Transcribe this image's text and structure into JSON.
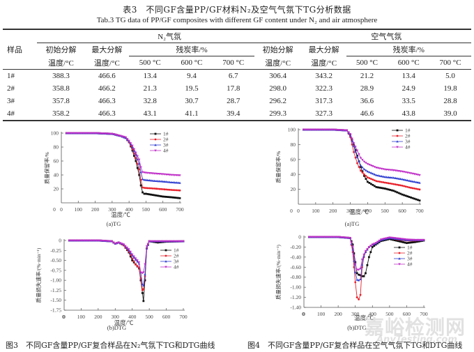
{
  "table": {
    "title_cn": "表3　不同GF含量PP/GF材料N₂及空气气氛下TG分析数据",
    "title_en": "Tab.3 TG data of PP/GF composites with different GF content under N₂ and air atmosphere",
    "group_n2": "N₂气氛",
    "group_air": "空气气氛",
    "col_sample": "样品",
    "col_onset_1": "初始分解",
    "col_onset_2": "温度/°C",
    "col_max_1": "最大分解",
    "col_max_2": "温度/°C",
    "col_residue": "残炭率/%",
    "col_500": "500 °C",
    "col_600": "600 °C",
    "col_700": "700 °C",
    "rows": [
      {
        "sample": "1#",
        "n2_onset": "388.3",
        "n2_max": "466.6",
        "n2_500": "13.4",
        "n2_600": "9.4",
        "n2_700": "6.7",
        "air_onset": "306.4",
        "air_max": "343.2",
        "air_500": "21.2",
        "air_600": "13.4",
        "air_700": "5.0"
      },
      {
        "sample": "2#",
        "n2_onset": "358.8",
        "n2_max": "466.2",
        "n2_500": "21.3",
        "n2_600": "19.5",
        "n2_700": "17.8",
        "air_onset": "298.0",
        "air_max": "322.3",
        "air_500": "28.9",
        "air_600": "24.9",
        "air_700": "19.8"
      },
      {
        "sample": "3#",
        "n2_onset": "357.8",
        "n2_max": "466.3",
        "n2_500": "32.8",
        "n2_600": "30.7",
        "n2_700": "28.7",
        "air_onset": "296.2",
        "air_max": "317.3",
        "air_500": "36.6",
        "air_600": "33.5",
        "air_700": "28.8"
      },
      {
        "sample": "4#",
        "n2_onset": "358.2",
        "n2_max": "466.3",
        "n2_500": "43.1",
        "n2_600": "41.1",
        "n2_700": "39.4",
        "air_onset": "299.3",
        "air_max": "327.3",
        "air_500": "46.6",
        "air_600": "43.8",
        "air_700": "39.0"
      }
    ]
  },
  "figures": {
    "fig3_caption": "图3　不同GF含量PP/GF复合样品在N₂气氛下TG和DTG曲线",
    "fig4_caption": "图4　不同GF含量PP/GF复合样品在空气气氛下TG和DTG曲线",
    "watermark_cn": "嘉峪检测网",
    "watermark_en": "AnyTesting.com"
  },
  "colors": {
    "s1": "#111111",
    "s2": "#e8202a",
    "s3": "#3040d0",
    "s4": "#c030c8"
  },
  "chart_data": [
    {
      "id": "fig3a",
      "type": "line",
      "title": "(a)TG",
      "xlabel": "温度/℃",
      "ylabel": "质量保留率/%",
      "xlim": [
        0,
        700
      ],
      "ylim": [
        0,
        100
      ],
      "xticks": [
        "0",
        "100",
        "200",
        "300",
        "400",
        "500",
        "600",
        "700"
      ],
      "yticks": [
        "20",
        "40",
        "60",
        "80",
        "100"
      ],
      "legend": [
        "1#",
        "2#",
        "3#",
        "4#"
      ],
      "legend_position": "top-right",
      "x": [
        30,
        100,
        200,
        300,
        350,
        380,
        400,
        420,
        440,
        460,
        470,
        480,
        490,
        500,
        550,
        600,
        650,
        700
      ],
      "series": [
        {
          "name": "1#",
          "values": [
            100,
            100,
            100,
            99,
            96,
            93,
            87,
            75,
            60,
            40,
            25,
            15,
            13,
            13,
            11,
            9,
            8,
            6.7
          ]
        },
        {
          "name": "2#",
          "values": [
            100,
            100,
            100,
            99,
            96,
            93,
            87,
            77,
            64,
            48,
            33,
            22,
            21.5,
            21.3,
            20.5,
            19.5,
            18.5,
            17.8
          ]
        },
        {
          "name": "3#",
          "values": [
            100,
            100,
            100,
            99,
            96,
            93,
            88,
            80,
            69,
            56,
            44,
            34,
            33,
            32.8,
            31.5,
            30.7,
            29.5,
            28.7
          ]
        },
        {
          "name": "4#",
          "values": [
            100,
            100,
            100,
            99,
            96,
            94,
            89,
            82,
            72,
            62,
            51,
            44,
            43.5,
            43.1,
            42,
            41.1,
            40,
            39.4
          ]
        }
      ]
    },
    {
      "id": "fig3b",
      "type": "line",
      "title": "(b)DTG",
      "xlabel": "温度/℃",
      "ylabel": "质量损失速率/(%·min⁻¹)",
      "xlim": [
        0,
        700
      ],
      "ylim": [
        -1.75,
        0
      ],
      "xticks": [
        "0",
        "100",
        "200",
        "300",
        "400",
        "500",
        "600",
        "700"
      ],
      "yticks": [
        "0",
        "-0.25",
        "-0.50",
        "-0.75",
        "-1.00",
        "-1.25",
        "-1.50",
        "-1.75"
      ],
      "legend": [
        "1#",
        "2#",
        "3#",
        "4#"
      ],
      "legend_position": "right",
      "x": [
        30,
        100,
        200,
        280,
        300,
        320,
        350,
        380,
        400,
        420,
        440,
        450,
        460,
        466,
        475,
        485,
        500,
        550,
        600,
        700
      ],
      "series": [
        {
          "name": "1#",
          "values": [
            0,
            0,
            0,
            -0.02,
            -0.08,
            -0.05,
            -0.12,
            -0.3,
            -0.5,
            -0.6,
            -0.7,
            -1.0,
            -1.32,
            -1.52,
            -1.0,
            -0.2,
            -0.02,
            -0.05,
            -0.03,
            -0.02
          ]
        },
        {
          "name": "2#",
          "values": [
            0,
            0,
            0,
            -0.02,
            -0.08,
            -0.05,
            -0.12,
            -0.28,
            -0.45,
            -0.6,
            -0.68,
            -0.95,
            -1.25,
            -1.22,
            -0.9,
            -0.2,
            -0.02,
            -0.02,
            -0.02,
            -0.02
          ]
        },
        {
          "name": "3#",
          "values": [
            0,
            0,
            0,
            -0.02,
            -0.08,
            -0.05,
            -0.1,
            -0.25,
            -0.38,
            -0.48,
            -0.58,
            -0.8,
            -1.1,
            -1.13,
            -0.85,
            -0.2,
            -0.02,
            -0.02,
            -0.02,
            -0.02
          ]
        },
        {
          "name": "4#",
          "values": [
            0,
            0,
            0,
            -0.02,
            -0.08,
            -0.05,
            -0.1,
            -0.22,
            -0.35,
            -0.45,
            -0.55,
            -0.8,
            -0.82,
            -0.8,
            -0.6,
            -0.15,
            -0.02,
            -0.02,
            -0.02,
            -0.02
          ]
        }
      ]
    },
    {
      "id": "fig4a",
      "type": "line",
      "title": "(a)TG",
      "xlabel": "温度/℃",
      "ylabel": "质量保留率/%",
      "xlim": [
        0,
        700
      ],
      "ylim": [
        0,
        100
      ],
      "xticks": [
        "0",
        "100",
        "200",
        "300",
        "400",
        "500",
        "600",
        "700"
      ],
      "yticks": [
        "20",
        "40",
        "60",
        "80",
        "100"
      ],
      "legend": [
        "1#",
        "2#",
        "3#",
        "4#"
      ],
      "legend_position": "top-right",
      "x": [
        30,
        100,
        200,
        280,
        300,
        320,
        340,
        360,
        380,
        400,
        450,
        500,
        550,
        600,
        650,
        700
      ],
      "series": [
        {
          "name": "1#",
          "values": [
            100,
            100,
            100,
            99,
            93,
            80,
            65,
            50,
            38,
            30,
            23,
            21,
            18,
            13,
            9,
            5
          ]
        },
        {
          "name": "2#",
          "values": [
            100,
            100,
            100,
            99,
            90,
            70,
            55,
            45,
            40,
            36,
            31,
            29,
            27,
            24.9,
            22,
            19.8
          ]
        },
        {
          "name": "3#",
          "values": [
            100,
            100,
            100,
            99,
            92,
            78,
            63,
            52,
            47,
            44,
            39,
            36.6,
            35.5,
            33.5,
            31,
            28.8
          ]
        },
        {
          "name": "4#",
          "values": [
            100,
            100,
            100,
            99,
            94,
            82,
            72,
            62,
            57,
            54,
            49,
            46.6,
            45.5,
            43.8,
            41.5,
            39
          ]
        }
      ]
    },
    {
      "id": "fig4b",
      "type": "line",
      "title": "(b)DTG",
      "xlabel": "温度/℃",
      "ylabel": "质量损失速率/(%·min⁻¹)",
      "xlim": [
        0,
        700
      ],
      "ylim": [
        -1.4,
        0
      ],
      "xticks": [
        "0",
        "100",
        "200",
        "300",
        "400",
        "500",
        "600",
        "700"
      ],
      "yticks": [
        "0",
        "-0.20",
        "-0.40",
        "-0.60",
        "-0.80",
        "-1.00",
        "-1.20",
        "-1.40"
      ],
      "legend": [
        "1#",
        "2#",
        "3#",
        "4#"
      ],
      "legend_position": "right",
      "x": [
        30,
        100,
        200,
        270,
        285,
        300,
        310,
        320,
        330,
        340,
        350,
        360,
        380,
        400,
        420,
        450,
        500,
        550,
        600,
        650,
        700
      ],
      "series": [
        {
          "name": "1#",
          "values": [
            0,
            0,
            0,
            -0.02,
            -0.15,
            -0.5,
            -0.72,
            -0.75,
            -0.76,
            -0.78,
            -0.78,
            -0.72,
            -0.4,
            -0.2,
            -0.15,
            -0.08,
            -0.04,
            -0.08,
            -0.12,
            -0.1,
            -0.07
          ]
        },
        {
          "name": "2#",
          "values": [
            0,
            0,
            0,
            -0.02,
            -0.3,
            -0.9,
            -1.2,
            -1.24,
            -1.15,
            -0.6,
            -0.4,
            -0.3,
            -0.2,
            -0.15,
            -0.12,
            -0.06,
            -0.02,
            -0.05,
            -0.07,
            -0.07,
            -0.06
          ]
        },
        {
          "name": "3#",
          "values": [
            0,
            0,
            0,
            -0.02,
            -0.25,
            -0.7,
            -0.85,
            -0.86,
            -0.84,
            -0.55,
            -0.38,
            -0.3,
            -0.2,
            -0.15,
            -0.13,
            -0.06,
            -0.02,
            -0.04,
            -0.06,
            -0.06,
            -0.06
          ]
        },
        {
          "name": "4#",
          "values": [
            0,
            0,
            0,
            -0.02,
            -0.2,
            -0.55,
            -0.65,
            -0.65,
            -0.63,
            -0.45,
            -0.35,
            -0.28,
            -0.2,
            -0.15,
            -0.12,
            -0.05,
            -0.01,
            -0.03,
            -0.05,
            -0.06,
            -0.06
          ]
        }
      ]
    }
  ]
}
